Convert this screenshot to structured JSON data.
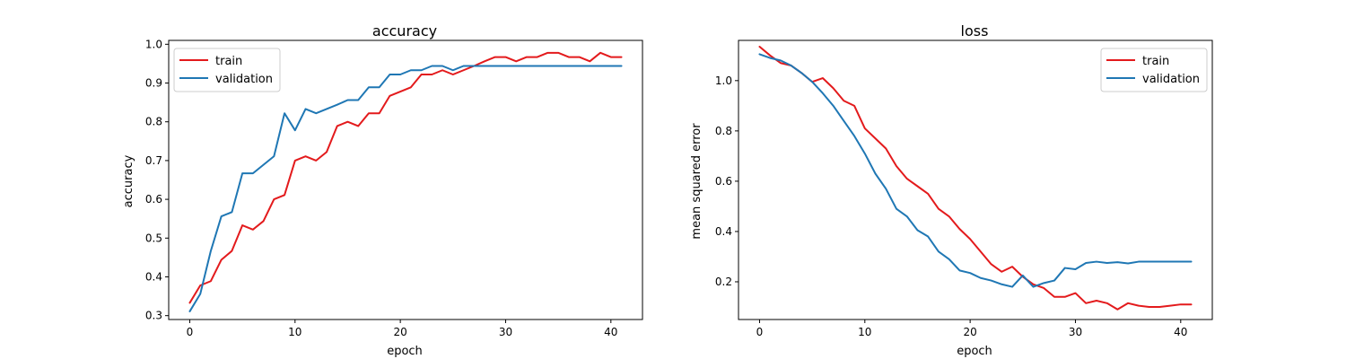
{
  "chart_data": [
    {
      "type": "line",
      "title": "accuracy",
      "xlabel": "epoch",
      "ylabel": "accuracy",
      "xlim": [
        -2,
        43
      ],
      "ylim": [
        0.29,
        1.01
      ],
      "xticks": [
        0,
        10,
        20,
        30,
        40
      ],
      "yticks": [
        0.3,
        0.4,
        0.5,
        0.6,
        0.7,
        0.8,
        0.9,
        1.0
      ],
      "ytick_decimals": 1,
      "grid": false,
      "legend_position": "top-left",
      "series": [
        {
          "name": "train",
          "color": "#e31a1c",
          "x": [
            0,
            1,
            2,
            3,
            4,
            5,
            6,
            7,
            8,
            9,
            10,
            11,
            12,
            13,
            14,
            15,
            16,
            17,
            18,
            19,
            20,
            21,
            22,
            23,
            24,
            25,
            26,
            27,
            28,
            29,
            30,
            31,
            32,
            33,
            34,
            35,
            36,
            37,
            38,
            39,
            40,
            41
          ],
          "values": [
            0.333,
            0.378,
            0.389,
            0.444,
            0.467,
            0.533,
            0.522,
            0.544,
            0.6,
            0.611,
            0.7,
            0.711,
            0.7,
            0.722,
            0.789,
            0.8,
            0.789,
            0.822,
            0.822,
            0.867,
            0.878,
            0.889,
            0.922,
            0.922,
            0.933,
            0.922,
            0.933,
            0.944,
            0.956,
            0.967,
            0.967,
            0.956,
            0.967,
            0.967,
            0.978,
            0.978,
            0.967,
            0.967,
            0.956,
            0.978,
            0.967,
            0.967
          ]
        },
        {
          "name": "validation",
          "color": "#1f77b4",
          "x": [
            0,
            1,
            2,
            3,
            4,
            5,
            6,
            7,
            8,
            9,
            10,
            11,
            12,
            13,
            14,
            15,
            16,
            17,
            18,
            19,
            20,
            21,
            22,
            23,
            24,
            25,
            26,
            27,
            28,
            29,
            30,
            31,
            32,
            33,
            34,
            35,
            36,
            37,
            38,
            39,
            40,
            41
          ],
          "values": [
            0.311,
            0.356,
            0.467,
            0.556,
            0.567,
            0.667,
            0.667,
            0.689,
            0.711,
            0.822,
            0.778,
            0.833,
            0.822,
            0.833,
            0.844,
            0.856,
            0.856,
            0.889,
            0.889,
            0.922,
            0.922,
            0.933,
            0.933,
            0.944,
            0.944,
            0.933,
            0.944,
            0.944,
            0.944,
            0.944,
            0.944,
            0.944,
            0.944,
            0.944,
            0.944,
            0.944,
            0.944,
            0.944,
            0.944,
            0.944,
            0.944,
            0.944
          ]
        }
      ]
    },
    {
      "type": "line",
      "title": "loss",
      "xlabel": "epoch",
      "ylabel": "mean squared error",
      "xlim": [
        -2,
        43
      ],
      "ylim": [
        0.05,
        1.16
      ],
      "xticks": [
        0,
        10,
        20,
        30,
        40
      ],
      "yticks": [
        0.2,
        0.4,
        0.6,
        0.8,
        1.0
      ],
      "ytick_decimals": 1,
      "grid": false,
      "legend_position": "top-right",
      "series": [
        {
          "name": "train",
          "color": "#e31a1c",
          "x": [
            0,
            1,
            2,
            3,
            4,
            5,
            6,
            7,
            8,
            9,
            10,
            11,
            12,
            13,
            14,
            15,
            16,
            17,
            18,
            19,
            20,
            21,
            22,
            23,
            24,
            25,
            26,
            27,
            28,
            29,
            30,
            31,
            32,
            33,
            34,
            35,
            36,
            37,
            38,
            39,
            40,
            41
          ],
          "values": [
            1.135,
            1.1,
            1.07,
            1.06,
            1.03,
            0.995,
            1.01,
            0.97,
            0.92,
            0.9,
            0.81,
            0.77,
            0.73,
            0.66,
            0.61,
            0.58,
            0.55,
            0.49,
            0.46,
            0.41,
            0.37,
            0.32,
            0.27,
            0.24,
            0.26,
            0.22,
            0.19,
            0.175,
            0.14,
            0.14,
            0.155,
            0.115,
            0.125,
            0.115,
            0.09,
            0.115,
            0.105,
            0.1,
            0.1,
            0.105,
            0.11,
            0.11
          ]
        },
        {
          "name": "validation",
          "color": "#1f77b4",
          "x": [
            0,
            1,
            2,
            3,
            4,
            5,
            6,
            7,
            8,
            9,
            10,
            11,
            12,
            13,
            14,
            15,
            16,
            17,
            18,
            19,
            20,
            21,
            22,
            23,
            24,
            25,
            26,
            27,
            28,
            29,
            30,
            31,
            32,
            33,
            34,
            35,
            36,
            37,
            38,
            39,
            40,
            41
          ],
          "values": [
            1.105,
            1.09,
            1.08,
            1.06,
            1.03,
            0.995,
            0.95,
            0.9,
            0.84,
            0.78,
            0.71,
            0.63,
            0.57,
            0.49,
            0.46,
            0.405,
            0.38,
            0.32,
            0.29,
            0.245,
            0.235,
            0.215,
            0.205,
            0.19,
            0.18,
            0.225,
            0.18,
            0.195,
            0.205,
            0.255,
            0.25,
            0.275,
            0.28,
            0.275,
            0.278,
            0.273,
            0.28,
            0.28,
            0.28,
            0.28,
            0.28,
            0.28
          ]
        }
      ]
    }
  ]
}
